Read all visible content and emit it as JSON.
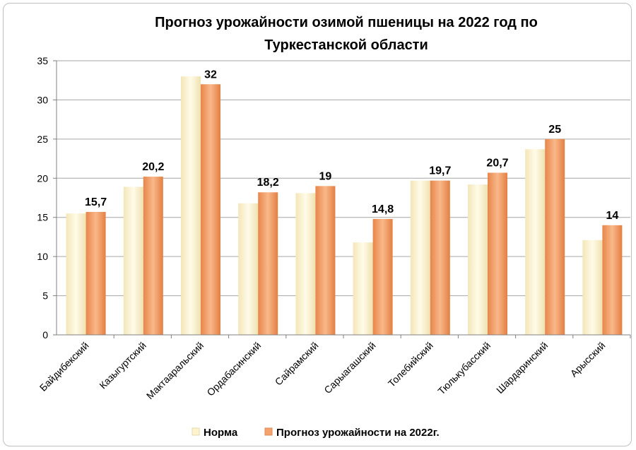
{
  "chart_data": {
    "type": "bar",
    "title_lines": [
      "Прогноз урожайности озимой пшеницы на 2022 год по",
      "Туркестанской области"
    ],
    "categories": [
      "Байдибекский",
      "Казыгуртский",
      "Мактааральский",
      "Ордабасинский",
      "Сайрамский",
      "Сарыагашский",
      "Толебийский",
      "Тюлькубасский",
      "Шардаринский",
      "Арысский"
    ],
    "series": [
      {
        "name": "Норма",
        "color": "#fdf3cf",
        "values": [
          15.5,
          18.9,
          33,
          16.8,
          18.1,
          11.8,
          19.7,
          19.2,
          23.7,
          12.1
        ]
      },
      {
        "name": "Прогноз урожайности на 2022г.",
        "color": "#f4a36c",
        "values": [
          15.7,
          20.2,
          32,
          18.2,
          19,
          14.8,
          19.7,
          20.7,
          25,
          14
        ]
      }
    ],
    "data_labels": [
      "15,7",
      "20,2",
      "32",
      "18,2",
      "19",
      "14,8",
      "19,7",
      "20,7",
      "25",
      "14"
    ],
    "ylim": [
      0,
      35
    ],
    "yticks": [
      0,
      5,
      10,
      15,
      20,
      25,
      30,
      35
    ],
    "grid": true,
    "legend_position": "bottom"
  }
}
